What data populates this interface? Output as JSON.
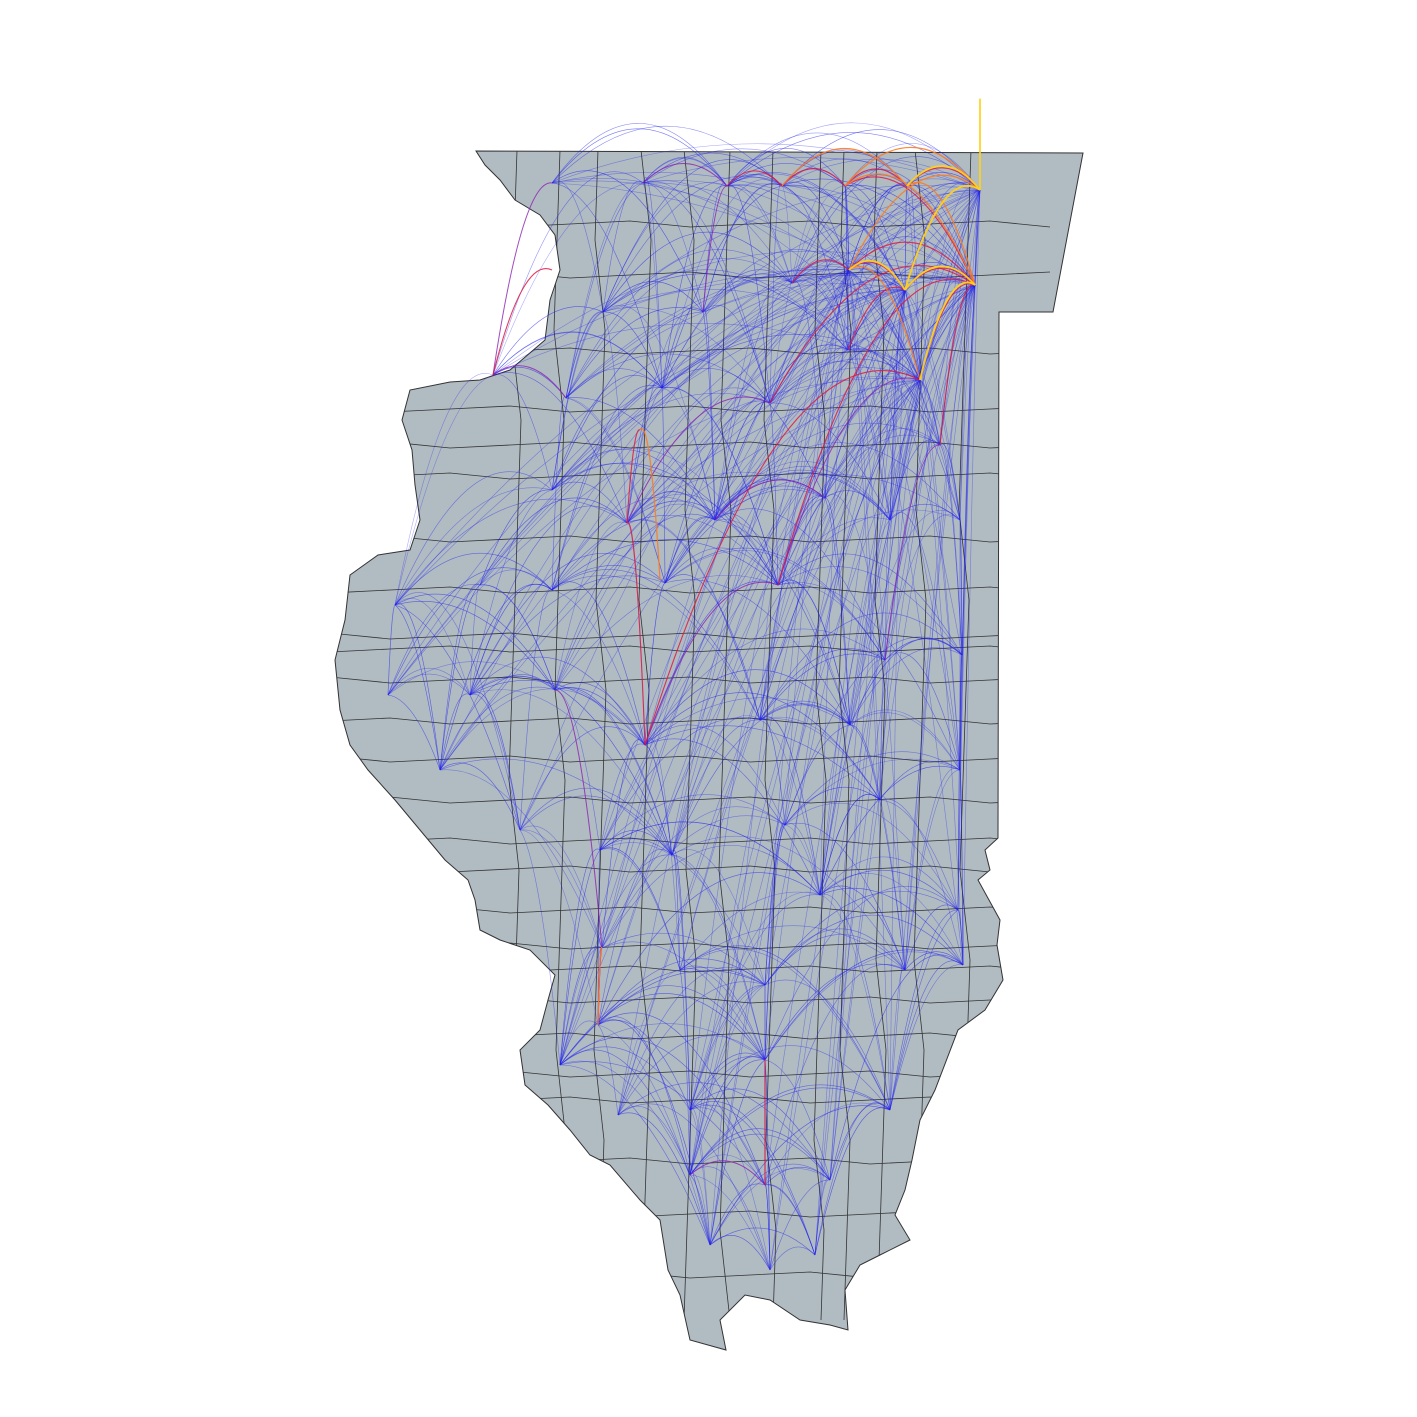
{
  "map": {
    "region": "Illinois",
    "subdivision": "counties",
    "layer_type": "flow arcs between county centroids",
    "colors": {
      "background": "#ffffff",
      "state_fill": "#b0bbc2",
      "county_border": "#333333",
      "low_flow": "#1f1fee",
      "medium_flow": "#8a1fb0",
      "high_flow": "#e0173f",
      "very_high_flow": "#ff7a1f",
      "max_flow": "#ffd21a"
    }
  }
}
